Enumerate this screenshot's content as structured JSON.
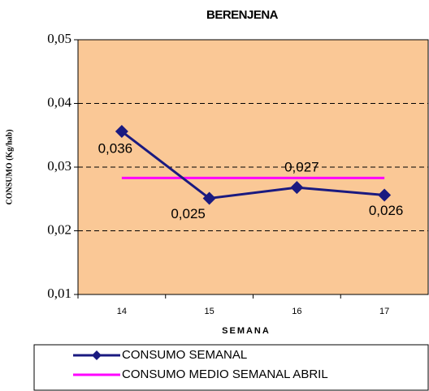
{
  "chart_data": {
    "type": "line",
    "title": "BERENJENA",
    "x_label": "SEMANA",
    "y_label": "CONSUMO (Kg/hab)",
    "categories": [
      "14",
      "15",
      "16",
      "17"
    ],
    "series": [
      {
        "name": "CONSUMO SEMANAL",
        "color": "#1a1a80",
        "marker": "diamond",
        "values": [
          0.0356,
          0.0251,
          0.0268,
          0.0256
        ],
        "value_labels": [
          "0,036",
          "0,025",
          "0,027",
          "0,026"
        ]
      },
      {
        "name": "CONSUMO MEDIO SEMANAL ABRIL",
        "color": "#ff00ff",
        "values": [
          0.0283,
          0.0283,
          0.0283,
          0.0283
        ]
      }
    ],
    "ylim": [
      0.01,
      0.05
    ],
    "yticks": [
      {
        "value": 0.01,
        "label": "0,01"
      },
      {
        "value": 0.02,
        "label": "0,02"
      },
      {
        "value": 0.03,
        "label": "0,03"
      },
      {
        "value": 0.04,
        "label": "0,04"
      },
      {
        "value": 0.05,
        "label": "0,05"
      }
    ],
    "grid": true,
    "background": "#fac896",
    "legend": "bottom"
  }
}
